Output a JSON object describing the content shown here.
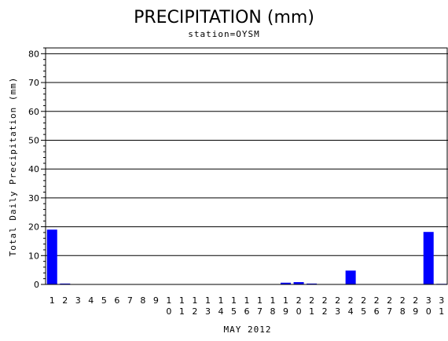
{
  "chart_data": {
    "type": "bar",
    "title": "PRECIPITATION (mm)",
    "subtitle": "station=OYSM",
    "xlabel": "MAY 2012",
    "ylabel": "Total Daily Precipitation (mm)",
    "categories": [
      "1",
      "2",
      "3",
      "4",
      "5",
      "6",
      "7",
      "8",
      "9",
      "10",
      "11",
      "12",
      "13",
      "14",
      "15",
      "16",
      "17",
      "18",
      "19",
      "20",
      "21",
      "22",
      "23",
      "24",
      "25",
      "26",
      "27",
      "28",
      "29",
      "30",
      "31"
    ],
    "values": [
      19,
      0.3,
      0,
      0,
      0,
      0,
      0,
      0,
      0,
      0,
      0,
      0,
      0,
      0,
      0,
      0,
      0,
      0,
      0.6,
      0.8,
      0.3,
      0,
      0,
      4.8,
      0,
      0,
      0,
      0,
      0,
      18.2,
      0.2
    ],
    "ylim": [
      0,
      82
    ],
    "yticks": [
      0,
      10,
      20,
      30,
      40,
      50,
      60,
      70,
      80
    ],
    "grid": true,
    "bar_color": "#0000ff"
  }
}
